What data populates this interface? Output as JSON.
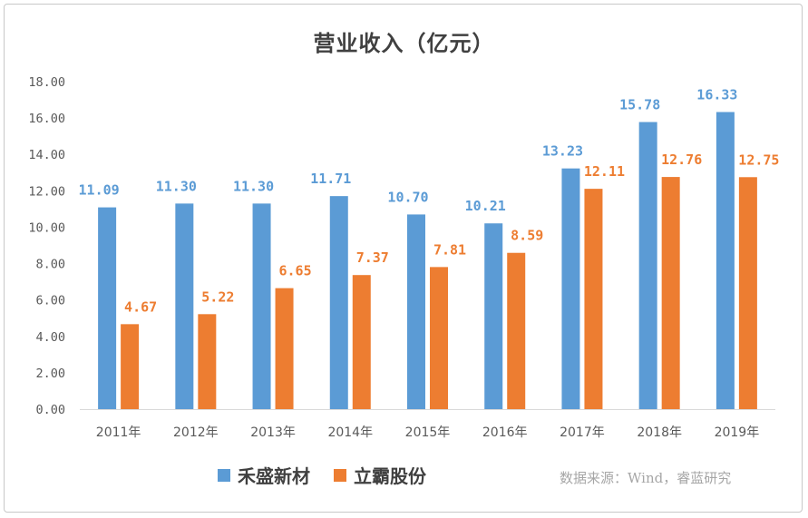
{
  "chart_data": {
    "type": "bar",
    "title": "营业收入（亿元）",
    "categories": [
      "2011年",
      "2012年",
      "2013年",
      "2014年",
      "2015年",
      "2016年",
      "2017年",
      "2018年",
      "2019年"
    ],
    "series": [
      {
        "name": "禾盛新材",
        "color": "#5B9BD5",
        "values": [
          11.09,
          11.3,
          11.3,
          11.71,
          10.7,
          10.21,
          13.23,
          15.78,
          16.33
        ],
        "labels": [
          "11.09",
          "11.30",
          "11.30",
          "11.71",
          "10.70",
          "10.21",
          "13.23",
          "15.78",
          "16.33"
        ]
      },
      {
        "name": "立霸股份",
        "color": "#ED7D31",
        "values": [
          4.67,
          5.22,
          6.65,
          7.37,
          7.81,
          8.59,
          12.11,
          12.76,
          12.75
        ],
        "labels": [
          "4.67",
          "5.22",
          "6.65",
          "7.37",
          "7.81",
          "8.59",
          "12.11",
          "12.76",
          "12.75"
        ]
      }
    ],
    "ylim": [
      0,
      18
    ],
    "yticks": [
      "0.00",
      "2.00",
      "4.00",
      "6.00",
      "8.00",
      "10.00",
      "12.00",
      "14.00",
      "16.00",
      "18.00"
    ],
    "grid": false,
    "legend": "bottom"
  },
  "source_note": "数据来源：Wind，睿蓝研究"
}
